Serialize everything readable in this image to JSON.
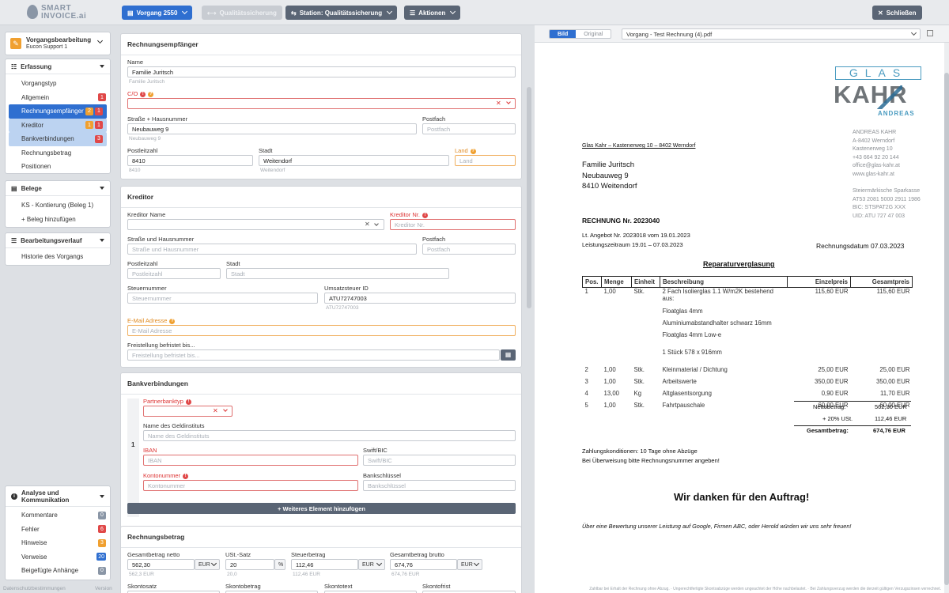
{
  "topbar": {
    "logo_line1": "SMART",
    "logo_line2": "INVOICE.ai",
    "vorgang_btn": "Vorgang 2550",
    "quality_btn": "Qualitätssicherung",
    "station_btn": "Station: Qualitätssicherung",
    "actions_btn": "Aktionen",
    "close_btn": "Schließen"
  },
  "sidebar": {
    "workspace_title": "Vorgangsbearbeitung",
    "workspace_sub": "Eucon Support 1",
    "erfassung": {
      "title": "Erfassung",
      "items": [
        {
          "label": "Vorgangstyp"
        },
        {
          "label": "Allgemein",
          "badges": [
            "1"
          ]
        },
        {
          "label": "Rechnungsempfänger",
          "badges": [
            "2",
            "1"
          ]
        },
        {
          "label": "Kreditor",
          "badges": [
            "1",
            "1"
          ]
        },
        {
          "label": "Bankverbindungen",
          "badges": [
            "3"
          ]
        },
        {
          "label": "Rechnungsbetrag"
        },
        {
          "label": "Positionen"
        }
      ]
    },
    "belege": {
      "title": "Belege",
      "item": "KS - Kontierung (Beleg 1)",
      "add": "+ Beleg hinzufügen"
    },
    "verlauf": {
      "title": "Bearbeitungsverlauf",
      "item": "Historie des Vorgangs"
    },
    "analyse": {
      "title": "Analyse und Kommunikation",
      "items": [
        {
          "label": "Kommentare",
          "count": "0"
        },
        {
          "label": "Fehler",
          "count": "6"
        },
        {
          "label": "Hinweise",
          "count": "3"
        },
        {
          "label": "Verweise",
          "count": "20"
        },
        {
          "label": "Beigefügte Anhänge",
          "count": "0"
        }
      ]
    },
    "footer_left": "Datenschutzbestimmungen",
    "footer_right": "Version"
  },
  "empfaenger": {
    "title": "Rechnungsempfänger",
    "name_label": "Name",
    "name_value": "Familie Juritsch",
    "name_hint": "Familie Juritsch",
    "co_label": "C/O",
    "street_label": "Straße + Hausnummer",
    "street_value": "Neubauweg 9",
    "street_hint": "Neubauweg 9",
    "postfach_label": "Postfach",
    "postfach_ph": "Postfach",
    "plz_label": "Postleitzahl",
    "plz_value": "8410",
    "plz_hint": "8410",
    "stadt_label": "Stadt",
    "stadt_value": "Weitendorf",
    "stadt_hint": "Weitendorf",
    "land_label": "Land",
    "land_ph": "Land"
  },
  "kreditor": {
    "title": "Kreditor",
    "name_label": "Kreditor Name",
    "nr_label": "Kreditor Nr.",
    "nr_ph": "Kreditor Nr.",
    "street_label": "Straße und Hausnummer",
    "street_ph": "Straße und Hausnummer",
    "postfach_label": "Postfach",
    "postfach_ph": "Postfach",
    "plz_label": "Postleitzahl",
    "plz_ph": "Postleitzahl",
    "stadt_label": "Stadt",
    "stadt_ph": "Stadt",
    "steuer_label": "Steuernummer",
    "steuer_ph": "Steuernummer",
    "ust_label": "Umsatzsteuer ID",
    "ust_value": "ATU72747003",
    "ust_hint": "ATU72747003",
    "mail_label": "E-Mail Adresse",
    "mail_ph": "E-Mail Adresse",
    "frei_label": "Freistellung befristet bis...",
    "frei_ph": "Freistellung befristet bis..."
  },
  "bank": {
    "title": "Bankverbindungen",
    "row_no": "1",
    "typ_label": "Partnerbanktyp",
    "inst_label": "Name des Geldinstituts",
    "inst_ph": "Name des Geldinstituts",
    "iban_label": "IBAN",
    "iban_ph": "IBAN",
    "swift_label": "Swift/BIC",
    "swift_ph": "Swift/BIC",
    "konto_label": "Kontonummer",
    "konto_ph": "Kontonummer",
    "blz_label": "Bankschlüssel",
    "blz_ph": "Bankschlüssel",
    "add_label": "+ Weiteres Element hinzufügen"
  },
  "betrag": {
    "title": "Rechnungsbetrag",
    "netto_label": "Gesamtbetrag netto",
    "netto_value": "562,30",
    "netto_cur": "EUR",
    "netto_hint": "562,3 EUR",
    "ust_label": "USt.-Satz",
    "ust_value": "20",
    "ust_unit": "%",
    "ust_hint": "20,0",
    "steuer_label": "Steuerbetrag",
    "steuer_value": "112,46",
    "steuer_cur": "EUR",
    "steuer_hint": "112,46 EUR",
    "brutto_label": "Gesamtbetrag brutto",
    "brutto_value": "674,76",
    "brutto_cur": "EUR",
    "brutto_hint": "674,76 EUR",
    "skontosatz_label": "Skontosatz",
    "skontobetrag_label": "Skontobetrag",
    "skontotext_label": "Skontotext",
    "skontofrist_label": "Skontofrist"
  },
  "viewer": {
    "tab_bild": "Bild",
    "tab_original": "Original",
    "file": "Vorgang - Test Rechnung (4).pdf",
    "doc": {
      "logo_glas": "GLAS",
      "logo_kahr": "KAHR",
      "logo_andreas": "ANDREAS",
      "sender_line": "Glas Kahr – Kastenerweg 10 – 8402 Werndorf",
      "company": [
        "ANDREAS KAHR",
        "A-8402 Werndorf",
        "Kastenerweg 10",
        "+43 664 92 20 144",
        "office@glas-kahr.at",
        "www.glas-kahr.at"
      ],
      "bank": [
        "Steiermärkische Sparkasse",
        "AT53 2081 5000 2911 1986",
        "BIC: STSPAT2G XXX",
        "UID: ATU 727 47 003"
      ],
      "recipient": [
        "Familie Juritsch",
        "Neubauweg 9",
        "8410 Weitendorf"
      ],
      "invoice_title": "RECHNUNG Nr. 2023040",
      "angebot": "Lt. Angebot Nr. 2023018 vom 19.01.2023",
      "zeitraum": "Leistungszeitraum 19.01 – 07.03.2023",
      "datum": "Rechnungsdatum 07.03.2023",
      "subject": "Reparaturverglasung",
      "headers": [
        "Pos.",
        "Menge",
        "Einheit",
        "Beschreibung",
        "Einzelpreis",
        "Gesamtpreis"
      ],
      "rows": [
        [
          "1",
          "1,00",
          "Stk.",
          "2 Fach Isolierglas 1.1 W/m2K bestehend aus:",
          "115,60 EUR",
          "115,60 EUR"
        ],
        [
          "",
          "",
          "",
          "",
          "",
          ""
        ],
        [
          "",
          "",
          "",
          "Floatglas 4mm",
          "",
          ""
        ],
        [
          "",
          "",
          "",
          "Aluminiumabstandhalter schwarz 16mm",
          "",
          ""
        ],
        [
          "",
          "",
          "",
          "Floatglas 4mm Low-e",
          "",
          ""
        ],
        [
          "",
          "",
          "",
          "",
          "",
          ""
        ],
        [
          "",
          "",
          "",
          "1 Stück 578 x 916mm",
          "",
          ""
        ],
        [
          "",
          "",
          "",
          "",
          "",
          ""
        ],
        [
          "2",
          "1,00",
          "Stk.",
          "Kleinmaterial / Dichtung",
          "25,00 EUR",
          "25,00 EUR"
        ],
        [
          "3",
          "1,00",
          "Stk.",
          "Arbeitswerte",
          "350,00 EUR",
          "350,00 EUR"
        ],
        [
          "4",
          "13,00",
          "Kg",
          "Altglasentsorgung",
          "0,90 EUR",
          "11,70 EUR"
        ],
        [
          "5",
          "1,00",
          "Stk.",
          "Fahrtpauschale",
          "60,00 EUR",
          "60,00 EUR"
        ]
      ],
      "netto_label": "Nettobetrag:",
      "netto": "562,30 EUR",
      "ust_label": "+ 20% USt.",
      "ust": "112,46 EUR",
      "gesamt_label": "Gesamtbetrag:",
      "gesamt": "674,76 EUR",
      "zahlung": "Zahlungskonditionen: 10 Tage ohne Abzüge",
      "ueberweisung": "Bei Überweisung bitte Rechnungsnummer angeben!",
      "danke": "Wir danken für den Auftrag!",
      "bewertung": "Über eine Bewertung unserer Leistung auf Google, Firmen ABC, oder Herold würden wir uns sehr freuen!",
      "footer": "Zahlbar bei Erhalt der Rechnung ohne Abzug. · Ungerechtfertigte Skontoabzüge werden ungeachtet der Höhe nachbelastet. · Bei Zahlungsverzug werden die derzeit gültigen Verzugszinsen verrechnet."
    }
  },
  "colors": {
    "primary": "#2f6fd0",
    "error": "#e04848",
    "warning": "#f0a030",
    "dark": "#5a6575"
  }
}
